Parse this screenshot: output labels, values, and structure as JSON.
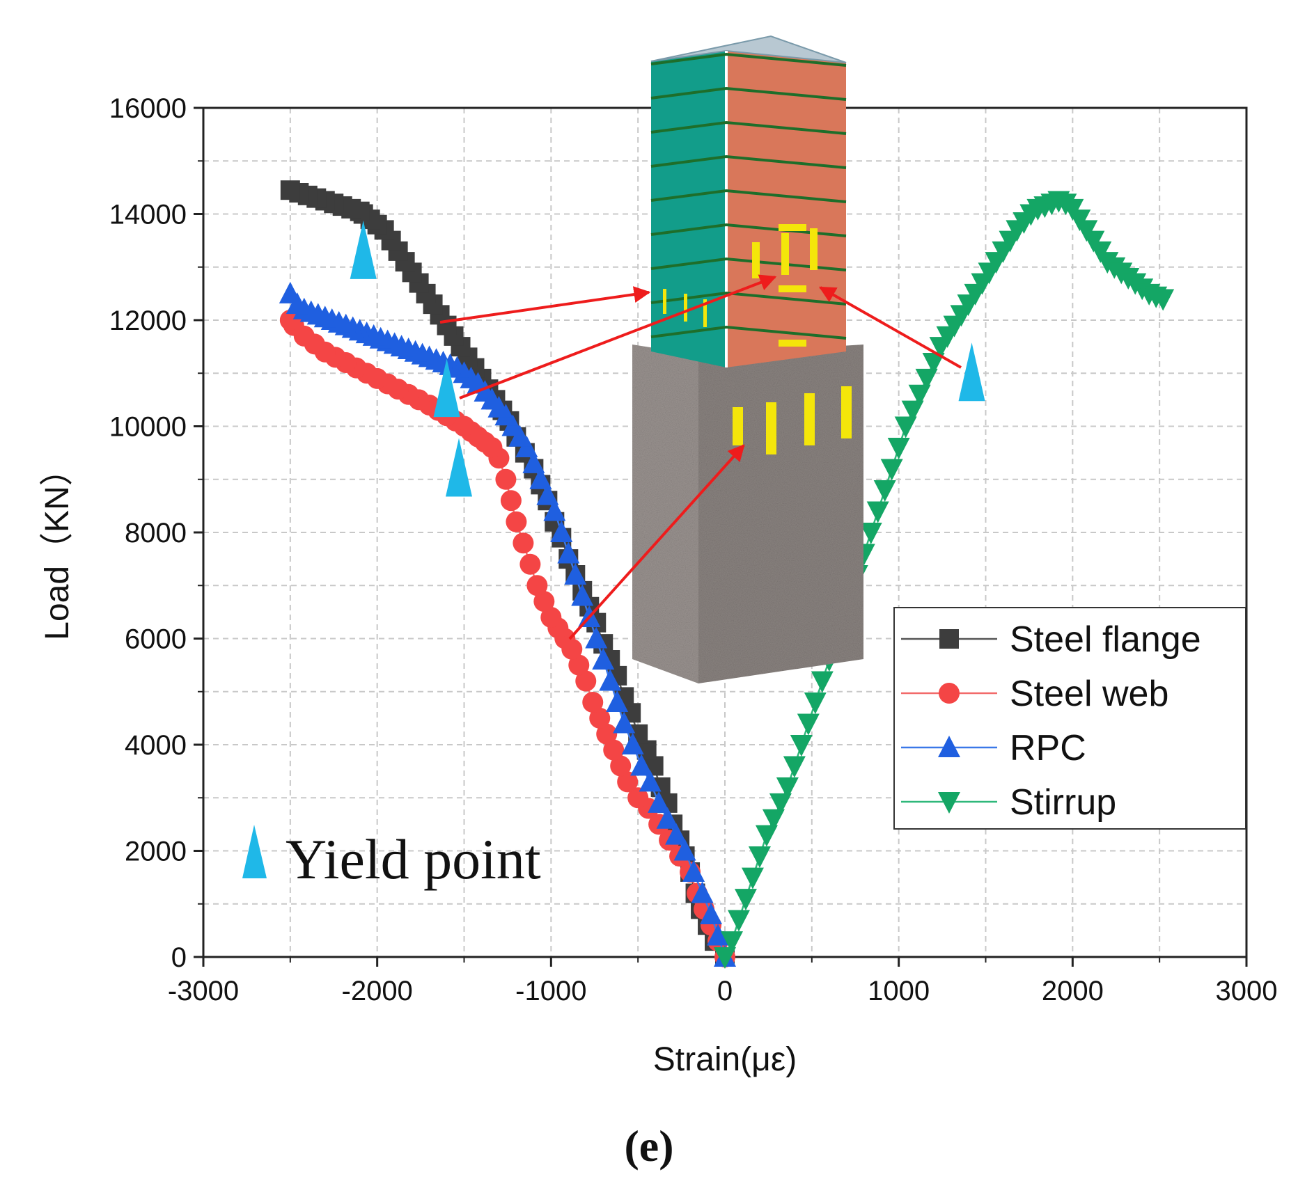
{
  "chart_data": {
    "type": "scatter",
    "title": "",
    "xlabel": "Strain(με)",
    "ylabel": "Load（KN）",
    "xlim": [
      -3000,
      3000
    ],
    "ylim": [
      0,
      16000
    ],
    "xticks": [
      "-3000",
      "-2000",
      "-1000",
      "0",
      "1000",
      "2000",
      "3000"
    ],
    "yticks": [
      "0",
      "2000",
      "4000",
      "6000",
      "8000",
      "10000",
      "12000",
      "14000",
      "16000"
    ],
    "grid": true,
    "legend_position": "right",
    "panel_label": "(e)",
    "yield_label": "Yield point",
    "series": [
      {
        "name": "Steel flange",
        "marker": "square",
        "color": "#3d3d3d",
        "line_color": "#555555",
        "x": [
          0,
          -60,
          -100,
          -140,
          -170,
          -200,
          -230,
          -260,
          -300,
          -330,
          -370,
          -410,
          -450,
          -500,
          -540,
          -580,
          -620,
          -660,
          -700,
          -740,
          -780,
          -820,
          -860,
          -900,
          -940,
          -980,
          -1020,
          -1060,
          -1100,
          -1150,
          -1200,
          -1240,
          -1280,
          -1320,
          -1360,
          -1400,
          -1440,
          -1480,
          -1520,
          -1560,
          -1600,
          -1640,
          -1680,
          -1720,
          -1760,
          -1800,
          -1840,
          -1880,
          -1920,
          -1960,
          -2000,
          -2040,
          -2080,
          -2100,
          -2150,
          -2200,
          -2250,
          -2300,
          -2350,
          -2400,
          -2450,
          -2500
        ],
        "y": [
          0,
          300,
          600,
          900,
          1200,
          1600,
          1900,
          2200,
          2500,
          2900,
          3200,
          3600,
          3900,
          4200,
          4600,
          4900,
          5300,
          5600,
          5900,
          6300,
          6600,
          6900,
          7200,
          7500,
          7900,
          8200,
          8600,
          8900,
          9200,
          9500,
          9800,
          10100,
          10300,
          10500,
          10700,
          10900,
          11100,
          11300,
          11500,
          11700,
          11900,
          12100,
          12300,
          12500,
          12700,
          12900,
          13100,
          13300,
          13500,
          13700,
          13800,
          13900,
          14000,
          14050,
          14100,
          14150,
          14200,
          14250,
          14300,
          14350,
          14400,
          14450
        ]
      },
      {
        "name": "Steel web",
        "marker": "circle",
        "color": "#f44545",
        "line_color": "#f26a6a",
        "x": [
          0,
          -40,
          -80,
          -120,
          -160,
          -200,
          -260,
          -320,
          -380,
          -440,
          -500,
          -560,
          -600,
          -640,
          -680,
          -720,
          -760,
          -800,
          -840,
          -880,
          -920,
          -960,
          -1000,
          -1040,
          -1080,
          -1120,
          -1160,
          -1200,
          -1230,
          -1260,
          -1300,
          -1340,
          -1380,
          -1420,
          -1460,
          -1500,
          -1550,
          -1600,
          -1650,
          -1700,
          -1760,
          -1820,
          -1880,
          -1940,
          -2000,
          -2060,
          -2120,
          -2180,
          -2240,
          -2300,
          -2360,
          -2420,
          -2480,
          -2500
        ],
        "y": [
          0,
          300,
          600,
          900,
          1200,
          1600,
          1900,
          2200,
          2500,
          2800,
          3000,
          3300,
          3600,
          3900,
          4200,
          4500,
          4800,
          5200,
          5500,
          5800,
          6000,
          6200,
          6400,
          6700,
          7000,
          7400,
          7800,
          8200,
          8600,
          9000,
          9400,
          9600,
          9700,
          9800,
          9900,
          10000,
          10100,
          10200,
          10300,
          10400,
          10500,
          10600,
          10700,
          10800,
          10900,
          11000,
          11100,
          11200,
          11300,
          11400,
          11550,
          11700,
          11900,
          12000
        ]
      },
      {
        "name": "RPC",
        "marker": "triangle-up",
        "color": "#1f5fe0",
        "line_color": "#3a78e8",
        "x": [
          0,
          -40,
          -80,
          -130,
          -180,
          -230,
          -280,
          -330,
          -380,
          -430,
          -480,
          -530,
          -580,
          -620,
          -660,
          -700,
          -740,
          -780,
          -820,
          -860,
          -900,
          -940,
          -980,
          -1020,
          -1060,
          -1100,
          -1140,
          -1180,
          -1220,
          -1260,
          -1300,
          -1340,
          -1380,
          -1420,
          -1460,
          -1500,
          -1540,
          -1580,
          -1620,
          -1660,
          -1700,
          -1740,
          -1780,
          -1820,
          -1860,
          -1900,
          -1940,
          -1980,
          -2020,
          -2060,
          -2100,
          -2140,
          -2180,
          -2220,
          -2260,
          -2300,
          -2340,
          -2380,
          -2420,
          -2460,
          -2500
        ],
        "y": [
          0,
          400,
          800,
          1200,
          1600,
          2000,
          2300,
          2600,
          2900,
          3300,
          3600,
          4000,
          4400,
          4800,
          5200,
          5600,
          6000,
          6400,
          6800,
          7200,
          7600,
          8000,
          8400,
          8700,
          9000,
          9300,
          9600,
          9800,
          10000,
          10200,
          10350,
          10500,
          10650,
          10800,
          10900,
          11000,
          11100,
          11150,
          11200,
          11250,
          11300,
          11350,
          11400,
          11450,
          11500,
          11550,
          11600,
          11650,
          11700,
          11750,
          11800,
          11850,
          11900,
          11950,
          12000,
          12050,
          12100,
          12150,
          12200,
          12300,
          12500
        ]
      },
      {
        "name": "Stirrup",
        "marker": "triangle-down",
        "color": "#14a665",
        "line_color": "#2fb87a",
        "x": [
          0,
          40,
          80,
          120,
          160,
          200,
          240,
          280,
          320,
          360,
          400,
          440,
          480,
          520,
          560,
          600,
          640,
          680,
          720,
          760,
          800,
          840,
          880,
          920,
          960,
          1000,
          1040,
          1080,
          1120,
          1160,
          1200,
          1240,
          1280,
          1320,
          1360,
          1400,
          1440,
          1480,
          1520,
          1560,
          1600,
          1640,
          1680,
          1720,
          1760,
          1800,
          1840,
          1880,
          1920,
          1960,
          2000,
          2040,
          2080,
          2120,
          2160,
          2200,
          2240,
          2280,
          2320,
          2360,
          2400,
          2440,
          2480,
          2520
        ],
        "y": [
          0,
          300,
          700,
          1100,
          1500,
          1900,
          2300,
          2600,
          2900,
          3200,
          3600,
          4000,
          4400,
          4800,
          5200,
          5600,
          6000,
          6400,
          6800,
          7200,
          7600,
          8000,
          8400,
          8800,
          9200,
          9600,
          10000,
          10300,
          10600,
          10900,
          11200,
          11500,
          11700,
          11900,
          12100,
          12300,
          12500,
          12700,
          12900,
          13100,
          13300,
          13500,
          13700,
          13850,
          14000,
          14100,
          14150,
          14200,
          14250,
          14200,
          14100,
          13900,
          13700,
          13500,
          13300,
          13100,
          13000,
          12900,
          12800,
          12700,
          12600,
          12500,
          12450,
          12400
        ]
      }
    ],
    "yield_points": [
      {
        "series": "Steel flange",
        "x": -2080,
        "y": 13300
      },
      {
        "series": "RPC",
        "x": -1600,
        "y": 10700
      },
      {
        "series": "Steel web",
        "x": -1530,
        "y": 9200
      },
      {
        "series": "Stirrup",
        "x": 1420,
        "y": 11000
      }
    ]
  },
  "colors": {
    "yield": "#1fb8e8",
    "arrow": "#ee1c1c",
    "column_steel_face": "#129d8a",
    "column_rpc_face": "#d9775a",
    "column_base": "#8a8380",
    "column_top": "#b8c8d2",
    "stirrup_ring": "#1e6e2a",
    "strain_gauge": "#f4e60a"
  }
}
